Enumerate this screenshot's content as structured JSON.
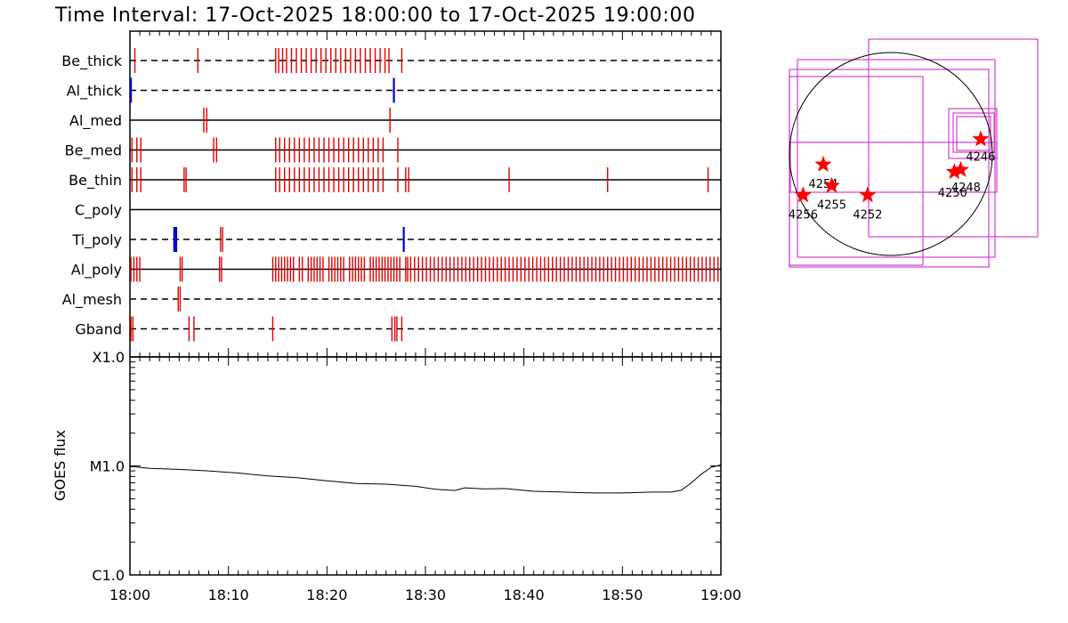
{
  "title": "Time Interval: 17-Oct-2025 18:00:00 to 17-Oct-2025 19:00:00",
  "colors": {
    "event": "#e00000",
    "event_alt": "#0000cc",
    "box": "#d040d0",
    "star": "#ff0000"
  },
  "chart_data": [
    {
      "type": "timeline",
      "x_ticks": [
        "18:00",
        "18:10",
        "18:20",
        "18:30",
        "18:40",
        "18:50",
        "19:00"
      ],
      "xlim_minutes": [
        0,
        60
      ],
      "rows": [
        {
          "label": "Be_thick",
          "style": "dashed",
          "events": [
            0.5,
            6.9,
            14.8,
            15.1,
            15.5,
            15.9,
            16.4,
            16.9,
            17.4,
            17.9,
            18.4,
            18.9,
            19.4,
            19.9,
            20.4,
            20.9,
            21.4,
            21.9,
            22.4,
            22.9,
            23.4,
            23.9,
            24.4,
            24.9,
            25.4,
            25.9,
            26.3,
            27.6
          ],
          "alt_events": []
        },
        {
          "label": "Al_thick",
          "style": "dashed",
          "events": [],
          "alt_events": [
            0.1,
            26.8
          ]
        },
        {
          "label": "Al_med",
          "style": "solid",
          "events": [
            7.5,
            7.8,
            26.4
          ],
          "alt_events": []
        },
        {
          "label": "Be_med",
          "style": "solid",
          "events": [
            0.2,
            0.7,
            1.1,
            8.5,
            8.8,
            14.8,
            15.2,
            15.7,
            16.2,
            16.7,
            17.2,
            17.7,
            18.2,
            18.7,
            19.2,
            19.7,
            20.2,
            20.7,
            21.2,
            21.7,
            22.2,
            22.7,
            23.2,
            23.7,
            24.2,
            24.7,
            25.2,
            25.7,
            27.2
          ],
          "alt_events": []
        },
        {
          "label": "Be_thin",
          "style": "solid",
          "events": [
            0.2,
            0.7,
            1.1,
            5.5,
            5.7,
            14.8,
            15.2,
            15.7,
            16.2,
            16.7,
            17.2,
            17.7,
            18.2,
            18.7,
            19.2,
            19.7,
            20.2,
            20.7,
            21.2,
            21.7,
            22.2,
            22.7,
            23.2,
            23.7,
            24.2,
            24.7,
            25.2,
            25.7,
            27.2,
            28.0,
            28.3,
            38.5,
            48.5,
            58.7
          ],
          "alt_events": []
        },
        {
          "label": "C_poly",
          "style": "solid",
          "events": [],
          "alt_events": []
        },
        {
          "label": "Ti_poly",
          "style": "dashed",
          "events": [
            9.2,
            9.4
          ],
          "alt_events": [
            4.5,
            4.7,
            27.8
          ]
        },
        {
          "label": "Al_poly",
          "style": "solid",
          "events": [
            0.1,
            0.4,
            0.7,
            1.0,
            5.1,
            5.3,
            9.1,
            9.3,
            14.5,
            14.8,
            15.1,
            15.4,
            15.7,
            16.0,
            16.3,
            16.6,
            17.2,
            17.5,
            18.1,
            18.4,
            18.7,
            19.0,
            19.3,
            19.6,
            20.2,
            20.5,
            20.8,
            21.1,
            21.4,
            21.7,
            22.3,
            22.6,
            22.9,
            23.2,
            23.5,
            23.8,
            24.4,
            24.7,
            25.0,
            25.3,
            25.6,
            25.9,
            26.2,
            26.5,
            26.8,
            27.1,
            27.4,
            28.0,
            28.2,
            28.5,
            28.9,
            29.3,
            29.7,
            30.1,
            30.5,
            30.9,
            31.3,
            31.7,
            32.1,
            32.5,
            32.9,
            33.3,
            33.7,
            34.1,
            34.5,
            34.9,
            35.3,
            35.7,
            36.1,
            36.5,
            36.9,
            37.3,
            37.7,
            38.1,
            38.5,
            38.9,
            39.3,
            39.7,
            40.1,
            40.5,
            40.9,
            41.3,
            41.7,
            42.1,
            42.5,
            42.9,
            43.3,
            43.7,
            44.1,
            44.5,
            44.9,
            45.3,
            45.7,
            46.1,
            46.5,
            46.9,
            47.3,
            47.7,
            48.1,
            48.5,
            48.9,
            49.3,
            49.7,
            50.1,
            50.5,
            50.9,
            51.3,
            51.7,
            52.1,
            52.5,
            52.9,
            53.3,
            53.7,
            54.1,
            54.5,
            54.9,
            55.3,
            55.7,
            56.1,
            56.5,
            56.9,
            57.3,
            57.7,
            58.1,
            58.5,
            58.9,
            59.3,
            59.7
          ],
          "alt_events": []
        },
        {
          "label": "Al_mesh",
          "style": "dashed",
          "events": [
            4.9,
            5.1
          ],
          "alt_events": []
        },
        {
          "label": "Gband",
          "style": "dashed",
          "events": [
            0.1,
            0.3,
            6.0,
            6.5,
            14.5,
            26.6,
            26.9,
            27.1,
            27.6
          ],
          "alt_events": []
        }
      ]
    },
    {
      "type": "line",
      "ylabel": "GOES flux",
      "y_ticks": [
        "X1.0",
        "M1.0",
        "C1.0"
      ],
      "yscale": "log",
      "ylim": [
        1e-06,
        0.0001
      ],
      "x_ticks": [
        "18:00",
        "18:10",
        "18:20",
        "18:30",
        "18:40",
        "18:50",
        "19:00"
      ],
      "x_minutes": [
        0,
        2,
        5,
        8,
        11,
        14,
        17,
        20,
        23,
        26,
        29,
        31,
        33,
        34,
        36,
        38,
        41,
        44,
        47,
        50,
        53,
        55,
        56,
        57,
        58,
        59,
        60
      ],
      "values": [
        9.9e-06,
        9.5e-06,
        9.3e-06,
        9e-06,
        8.6e-06,
        8.1e-06,
        7.8e-06,
        7.3e-06,
        6.9e-06,
        6.8e-06,
        6.5e-06,
        6.1e-06,
        5.95e-06,
        6.3e-06,
        6.15e-06,
        6.2e-06,
        5.85e-06,
        5.75e-06,
        5.65e-06,
        5.65e-06,
        5.75e-06,
        5.75e-06,
        6e-06,
        7e-06,
        8.4e-06,
        9.7e-06,
        1.02e-05
      ]
    },
    {
      "type": "scatter",
      "ar_labels": [
        "4246",
        "4254",
        "4255",
        "4256",
        "4252",
        "4250",
        "4248"
      ],
      "ar_points": [
        {
          "label": "4246",
          "x": 850,
          "y": 140
        },
        {
          "label": "4254",
          "x": -640,
          "y": -100
        },
        {
          "label": "4255",
          "x": -560,
          "y": -300
        },
        {
          "label": "4256",
          "x": -830,
          "y": -390
        },
        {
          "label": "4252",
          "x": -220,
          "y": -390
        },
        {
          "label": "4250",
          "x": 600,
          "y": -170
        },
        {
          "label": "4248",
          "x": 660,
          "y": -150
        }
      ]
    }
  ]
}
